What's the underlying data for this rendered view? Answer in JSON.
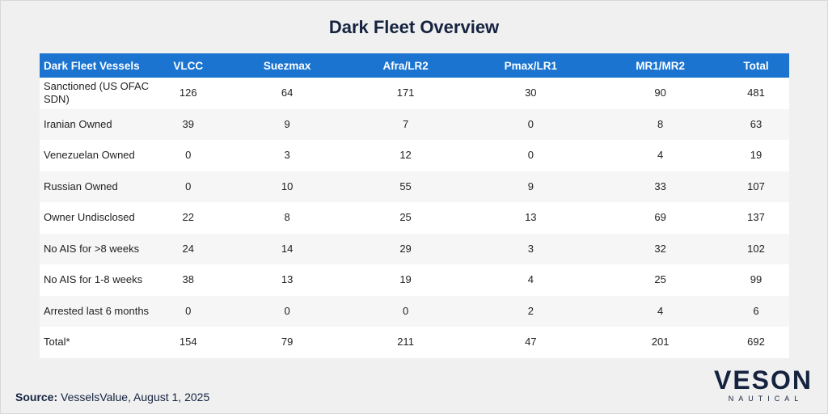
{
  "title": "Dark Fleet Overview",
  "table": {
    "header": [
      "Dark Fleet Vessels",
      "VLCC",
      "Suezmax",
      "Afra/LR2",
      "Pmax/LR1",
      "MR1/MR2",
      "Total"
    ],
    "rows": [
      [
        "Sanctioned (US OFAC SDN)",
        126,
        64,
        171,
        30,
        90,
        481
      ],
      [
        "Iranian Owned",
        39,
        9,
        7,
        0,
        8,
        63
      ],
      [
        "Venezuelan Owned",
        0,
        3,
        12,
        0,
        4,
        19
      ],
      [
        "Russian Owned",
        0,
        10,
        55,
        9,
        33,
        107
      ],
      [
        "Owner Undisclosed",
        22,
        8,
        25,
        13,
        69,
        137
      ],
      [
        "No AIS for >8 weeks",
        24,
        14,
        29,
        3,
        32,
        102
      ],
      [
        "No AIS for 1-8 weeks",
        38,
        13,
        19,
        4,
        25,
        99
      ],
      [
        "Arrested last 6 months",
        0,
        0,
        0,
        2,
        4,
        6
      ],
      [
        "Total*",
        154,
        79,
        211,
        47,
        201,
        692
      ]
    ]
  },
  "source": {
    "label": "Source:",
    "text": "VesselsValue, August 1, 2025"
  },
  "logo": {
    "name": "VESON",
    "sub": "NAUTICAL"
  }
}
